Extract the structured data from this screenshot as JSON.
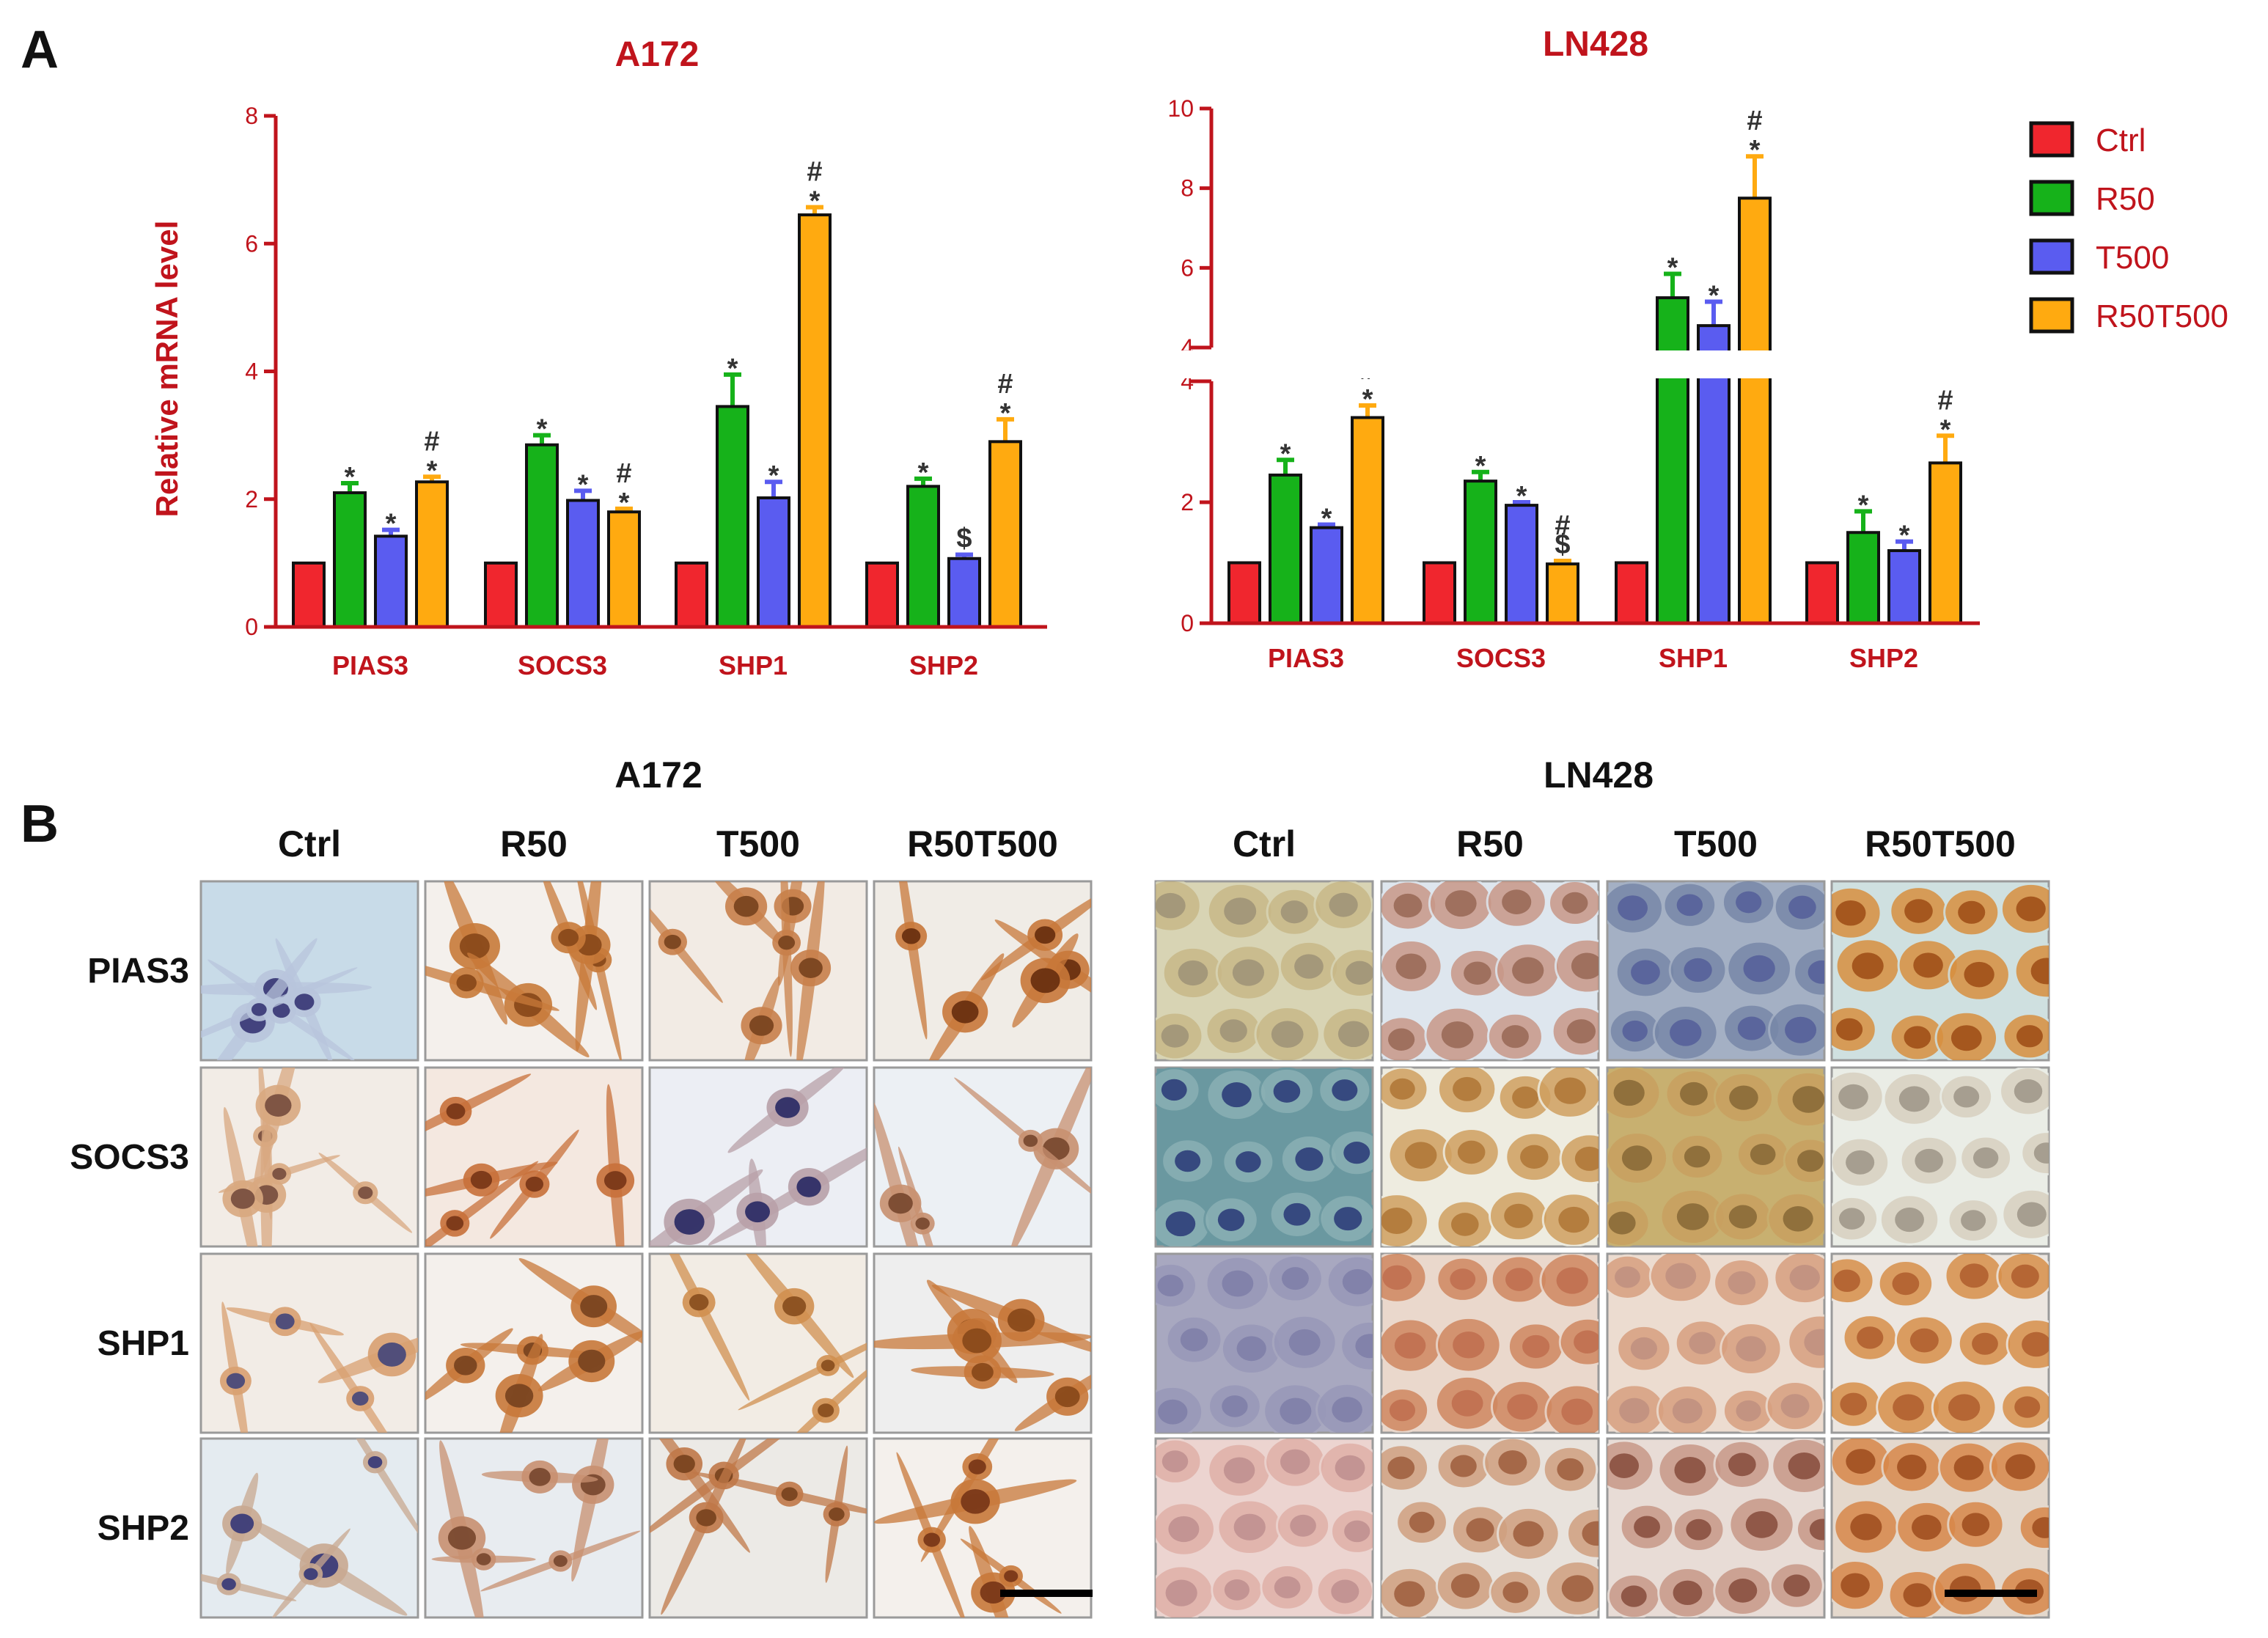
{
  "panel_a_label": "A",
  "panel_b_label": "B",
  "colors": {
    "Ctrl": "#f0262e",
    "R50": "#16b21a",
    "T500": "#5a5cf0",
    "R50T500": "#ffaa10",
    "axis": "#c0141c"
  },
  "chart_data": [
    {
      "type": "bar",
      "title": "A172",
      "ylabel": "Relative mRNA level",
      "xlabel": "",
      "categories": [
        "PIAS3",
        "SOCS3",
        "SHP1",
        "SHP2"
      ],
      "ylim": [
        0,
        8
      ],
      "yticks": [
        "0",
        "2",
        "4",
        "6",
        "8"
      ],
      "series": [
        {
          "name": "Ctrl",
          "values": [
            1.0,
            1.0,
            1.0,
            1.0
          ],
          "errors": [
            0,
            0,
            0,
            0
          ],
          "marks": [
            "",
            "",
            "",
            ""
          ]
        },
        {
          "name": "R50",
          "values": [
            2.1,
            2.85,
            3.45,
            2.2
          ],
          "errors": [
            0.15,
            0.15,
            0.5,
            0.12
          ],
          "marks": [
            "*",
            "*",
            "*",
            "*"
          ]
        },
        {
          "name": "T500",
          "values": [
            1.42,
            1.98,
            2.02,
            1.07
          ],
          "errors": [
            0.1,
            0.15,
            0.25,
            0.06
          ],
          "marks": [
            "*",
            "*",
            "*",
            "$"
          ]
        },
        {
          "name": "R50T500",
          "values": [
            2.27,
            1.8,
            6.45,
            2.9
          ],
          "errors": [
            0.08,
            0.05,
            0.12,
            0.35
          ],
          "marks": [
            "*#",
            "*#",
            "*#",
            "*#"
          ]
        }
      ]
    },
    {
      "type": "bar",
      "title": "LN428",
      "ylabel": "",
      "xlabel": "",
      "categories": [
        "PIAS3",
        "SOCS3",
        "SHP1",
        "SHP2"
      ],
      "ylim": [
        0,
        10
      ],
      "axis_break": [
        4,
        4
      ],
      "yticks_lower": [
        "0",
        "2",
        "4"
      ],
      "yticks_upper": [
        "4",
        "6",
        "8",
        "10"
      ],
      "series": [
        {
          "name": "Ctrl",
          "values": [
            1.0,
            1.0,
            1.0,
            1.0
          ],
          "errors": [
            0,
            0,
            0,
            0
          ],
          "marks": [
            "",
            "",
            "",
            ""
          ]
        },
        {
          "name": "R50",
          "values": [
            2.45,
            2.35,
            5.25,
            1.5
          ],
          "errors": [
            0.25,
            0.15,
            0.6,
            0.35
          ],
          "marks": [
            "*",
            "*",
            "*",
            "*"
          ]
        },
        {
          "name": "T500",
          "values": [
            1.58,
            1.95,
            4.55,
            1.2
          ],
          "errors": [
            0.05,
            0.05,
            0.6,
            0.15
          ],
          "marks": [
            "*",
            "*",
            "*",
            "*"
          ]
        },
        {
          "name": "R50T500",
          "values": [
            3.4,
            0.98,
            7.75,
            2.65
          ],
          "errors": [
            0.2,
            0.05,
            1.05,
            0.45
          ],
          "marks": [
            "*#",
            "$#",
            "*#",
            "*#"
          ]
        }
      ]
    }
  ],
  "legend": [
    "Ctrl",
    "R50",
    "T500",
    "R50T500"
  ],
  "panel_b": {
    "groups": [
      {
        "title": "A172",
        "columns": [
          "Ctrl",
          "R50",
          "T500",
          "R50T500"
        ]
      },
      {
        "title": "LN428",
        "columns": [
          "Ctrl",
          "R50",
          "T500",
          "R50T500"
        ]
      }
    ],
    "rows": [
      "PIAS3",
      "SOCS3",
      "SHP1",
      "SHP2"
    ]
  }
}
